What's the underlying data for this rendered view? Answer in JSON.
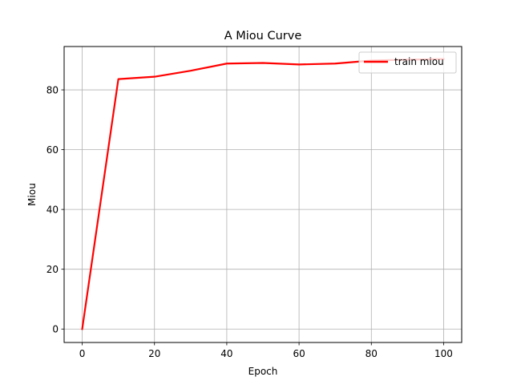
{
  "chart_data": {
    "type": "line",
    "title": "A Miou Curve",
    "xlabel": "Epoch",
    "ylabel": "Miou",
    "xlim": [
      -5,
      105
    ],
    "ylim": [
      -4.5,
      94.5
    ],
    "x_ticks": [
      0,
      20,
      40,
      60,
      80,
      100
    ],
    "y_ticks": [
      0,
      20,
      40,
      60,
      80
    ],
    "grid": true,
    "legend_position": "top-right",
    "series": [
      {
        "name": "train miou",
        "color": "#ff0000",
        "x": [
          0,
          10,
          20,
          30,
          40,
          50,
          60,
          70,
          80,
          90,
          100
        ],
        "y": [
          0,
          83.6,
          84.4,
          86.4,
          88.8,
          89.0,
          88.5,
          88.8,
          89.8,
          90.1,
          90.3
        ]
      }
    ]
  }
}
